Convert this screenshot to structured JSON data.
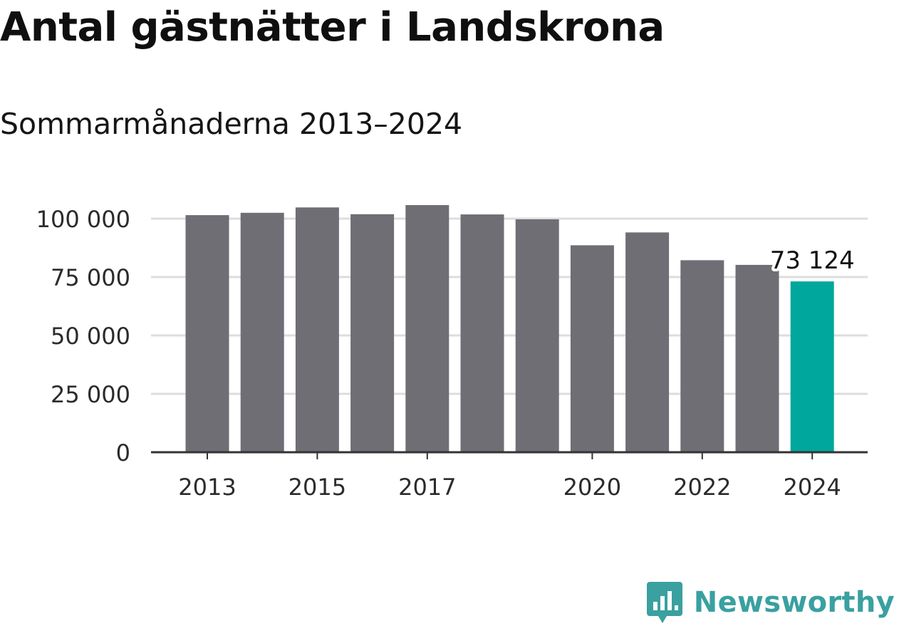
{
  "title": "Antal gästnätter i Landskrona",
  "subtitle": "Sommarmånaderna 2013–2024",
  "chart_data": {
    "type": "bar",
    "title": "Antal gästnätter i Landskrona",
    "subtitle": "Sommarmånaderna 2013–2024",
    "categories": [
      2013,
      2014,
      2015,
      2016,
      2017,
      2018,
      2019,
      2020,
      2021,
      2022,
      2023,
      2024
    ],
    "values": [
      101500,
      102500,
      104800,
      101900,
      105800,
      101800,
      99700,
      88600,
      94100,
      82200,
      80200,
      73124
    ],
    "xticks": [
      "2013",
      "2015",
      "2017",
      "2020",
      "2022",
      "2024"
    ],
    "yticks": [
      0,
      25000,
      50000,
      75000,
      100000
    ],
    "ytick_labels": [
      "0",
      "25 000",
      "50 000",
      "75 000",
      "100 000"
    ],
    "ylim": [
      0,
      100000
    ],
    "grid": true,
    "highlight": {
      "category": 2024,
      "label": "73 124"
    },
    "colors": {
      "bar": "#6f6e74",
      "highlight": "#00a79d",
      "grid": "#dddddd",
      "axis": "#333333"
    }
  },
  "logo": {
    "text": "Newsworthy",
    "color": "#3aa0a0",
    "icon": "bar-chart-pin-icon"
  }
}
